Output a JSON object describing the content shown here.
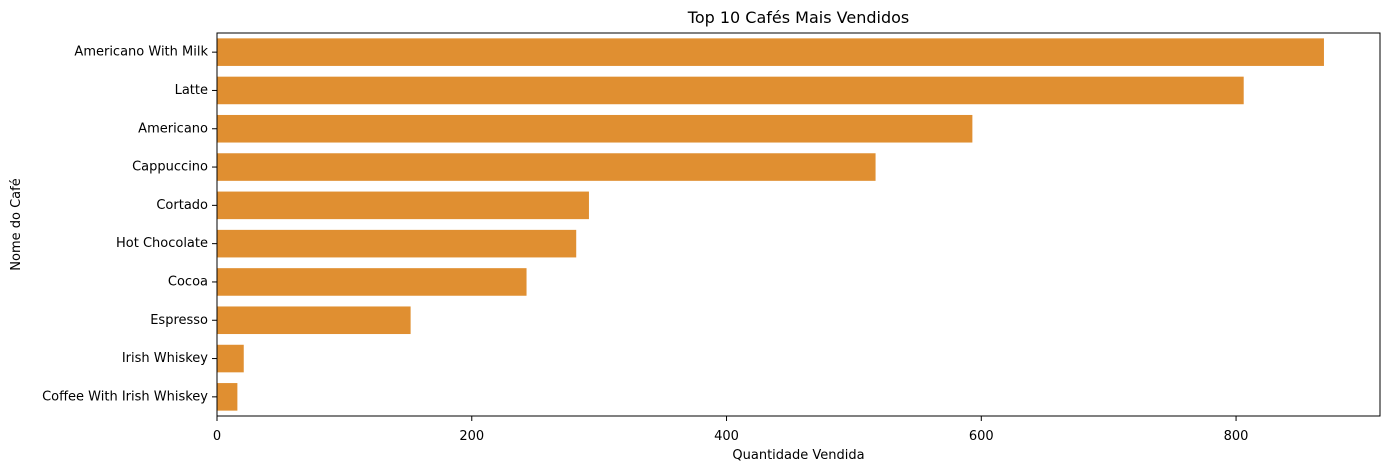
{
  "chart_data": {
    "type": "bar",
    "orientation": "horizontal",
    "title": "Top 10 Cafés Mais Vendidos",
    "xlabel": "Quantidade Vendida",
    "ylabel": "Nome do Café",
    "categories": [
      "Americano With Milk",
      "Latte",
      "Americano",
      "Cappuccino",
      "Cortado",
      "Hot Chocolate",
      "Cocoa",
      "Espresso",
      "Irish Whiskey",
      "Coffee With Irish Whiskey"
    ],
    "values": [
      869,
      806,
      593,
      517,
      292,
      282,
      243,
      152,
      21,
      16
    ],
    "xlim": [
      0,
      913
    ],
    "xticks": [
      0,
      200,
      400,
      600,
      800
    ],
    "bar_color": "#e08f31",
    "grid": false
  }
}
